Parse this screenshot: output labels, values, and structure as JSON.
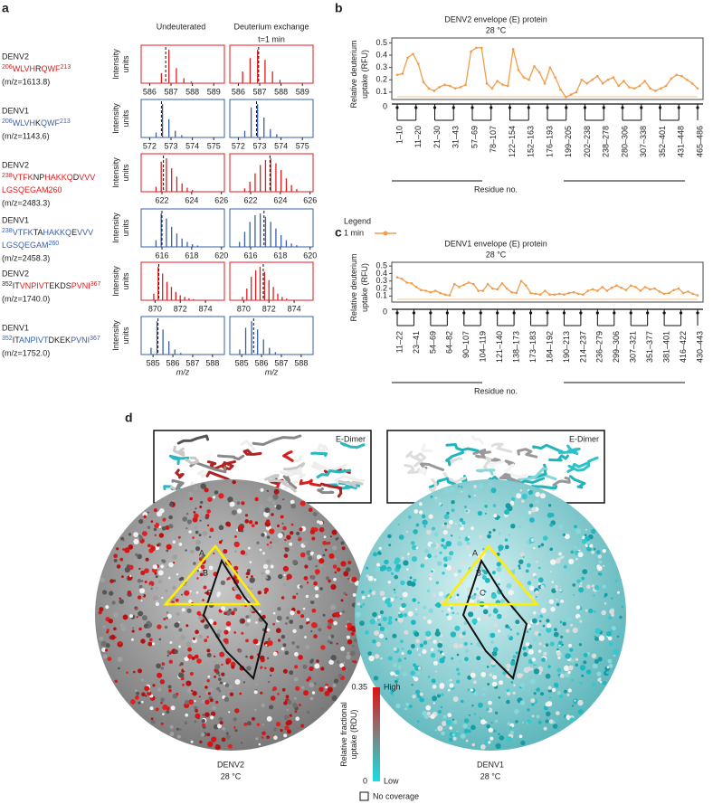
{
  "panel_a": {
    "label": "a",
    "headers": [
      "Undeuterated",
      "Deuterium exchange"
    ],
    "time": "t=1 min",
    "ylabel": [
      "Intensity",
      "units"
    ],
    "xlabel": "m/z",
    "rows": [
      {
        "name": "DENV2",
        "color": "#e41a1c",
        "sequence": [
          [
            {
              "text": "206",
              "sup": true,
              "color": "#e41a1c"
            },
            {
              "text": "WLVH",
              "color": "#e41a1c"
            },
            {
              "text": "R",
              "color": "#222222"
            },
            {
              "text": "QWF",
              "color": "#e41a1c"
            },
            {
              "text": "213",
              "sup": true,
              "color": "#e41a1c"
            }
          ]
        ],
        "mz": "(m/z=1613.8)",
        "undeuterated": {
          "xlim": [
            585.6,
            589.5
          ],
          "xticks": [
            586,
            587,
            588,
            589
          ],
          "mz": [
            586.55,
            586.9,
            587.25,
            587.6,
            587.95
          ],
          "intensity": [
            0.3,
            1.0,
            0.45,
            0.15,
            0.05
          ],
          "centroid": 586.75
        },
        "exchange": {
          "xlim": [
            585.6,
            589.5
          ],
          "xticks": [
            586,
            587,
            588,
            589
          ],
          "mz": [
            586.2,
            586.55,
            586.9,
            587.25,
            587.6,
            587.95
          ],
          "intensity": [
            0.35,
            0.75,
            1.0,
            0.7,
            0.35,
            0.1
          ],
          "centroid": 586.95
        }
      },
      {
        "name": "DENV1",
        "color": "#3a5fa8",
        "sequence": [
          [
            {
              "text": "206",
              "sup": true,
              "color": "#3a5fa8"
            },
            {
              "text": "WLVH",
              "color": "#3a5fa8"
            },
            {
              "text": "K",
              "color": "#222222"
            },
            {
              "text": "QWF",
              "color": "#3a5fa8"
            },
            {
              "text": "213",
              "sup": true,
              "color": "#3a5fa8"
            }
          ]
        ],
        "mz": "(m/z=1143.6)",
        "undeuterated": {
          "xlim": [
            571.6,
            575.5
          ],
          "xticks": [
            572,
            573,
            574,
            575
          ],
          "mz": [
            572.3,
            572.6,
            572.9,
            573.2,
            573.5
          ],
          "intensity": [
            0.15,
            1.0,
            0.55,
            0.2,
            0.07
          ],
          "centroid": 572.55
        },
        "exchange": {
          "xlim": [
            571.6,
            575.5
          ],
          "xticks": [
            572,
            573,
            574,
            575
          ],
          "mz": [
            572.3,
            572.6,
            572.9,
            573.2,
            573.5,
            573.8
          ],
          "intensity": [
            0.2,
            0.9,
            1.0,
            0.6,
            0.25,
            0.1
          ],
          "centroid": 572.85
        }
      },
      {
        "name": "DENV2",
        "color": "#e41a1c",
        "sequence": [
          [
            {
              "text": "238",
              "sup": true,
              "color": "#e41a1c"
            },
            {
              "text": "VTFK",
              "color": "#e41a1c"
            },
            {
              "text": "NP",
              "color": "#222222"
            },
            {
              "text": "HAKKQ",
              "color": "#e41a1c"
            },
            {
              "text": "D",
              "color": "#222222"
            },
            {
              "text": "VVV",
              "color": "#e41a1c"
            }
          ],
          [
            {
              "text": "LGSQEGAM260",
              "color": "#e41a1c"
            }
          ]
        ],
        "mz": "(m/z=2483.3)",
        "undeuterated": {
          "xlim": [
            620.6,
            626.2
          ],
          "xticks": [
            622,
            624,
            626
          ],
          "mz": [
            621.6,
            621.95,
            622.3,
            622.65,
            623.0,
            623.35,
            623.7,
            624.05
          ],
          "intensity": [
            0.15,
            0.9,
            1.0,
            0.7,
            0.45,
            0.25,
            0.12,
            0.05
          ],
          "centroid": 622.1
        },
        "exchange": {
          "xlim": [
            620.6,
            626.2
          ],
          "xticks": [
            622,
            624,
            626
          ],
          "mz": [
            621.6,
            621.95,
            622.3,
            622.65,
            623.0,
            623.35,
            623.7,
            624.05,
            624.4,
            624.75,
            625.1
          ],
          "intensity": [
            0.1,
            0.3,
            0.55,
            0.8,
            0.95,
            1.0,
            0.85,
            0.65,
            0.4,
            0.2,
            0.08
          ],
          "centroid": 623.3
        }
      },
      {
        "name": "DENV1",
        "color": "#3a5fa8",
        "sequence": [
          [
            {
              "text": "238",
              "sup": true,
              "color": "#3a5fa8"
            },
            {
              "text": "VTFK",
              "color": "#3a5fa8"
            },
            {
              "text": "TA",
              "color": "#222222"
            },
            {
              "text": "HAKKQ",
              "color": "#3a5fa8"
            },
            {
              "text": "E",
              "color": "#222222"
            },
            {
              "text": "VVV",
              "color": "#3a5fa8"
            }
          ],
          [
            {
              "text": "LGSQEGAM",
              "color": "#3a5fa8"
            },
            {
              "text": "260",
              "sup": true,
              "color": "#3a5fa8"
            }
          ]
        ],
        "mz": "(m/z=2458.3)",
        "undeuterated": {
          "xlim": [
            614.6,
            620.2
          ],
          "xticks": [
            616,
            618,
            620
          ],
          "mz": [
            615.6,
            615.95,
            616.3,
            616.65,
            617.0,
            617.35,
            617.7,
            618.05,
            618.4
          ],
          "intensity": [
            0.2,
            1.0,
            0.85,
            0.6,
            0.4,
            0.25,
            0.15,
            0.08,
            0.04
          ],
          "centroid": 616.0
        },
        "exchange": {
          "xlim": [
            614.6,
            620.2
          ],
          "xticks": [
            616,
            618,
            620
          ],
          "mz": [
            615.25,
            615.6,
            615.95,
            616.3,
            616.65,
            617.0,
            617.35,
            617.7,
            618.05,
            618.4,
            618.75,
            619.1
          ],
          "intensity": [
            0.15,
            0.45,
            0.75,
            0.95,
            1.0,
            0.9,
            0.75,
            0.55,
            0.35,
            0.2,
            0.1,
            0.05
          ],
          "centroid": 616.9
        }
      },
      {
        "name": "DENV2",
        "color": "#e41a1c",
        "sequence": [
          [
            {
              "text": "352",
              "sup": true,
              "color": "#222222"
            },
            {
              "text": "IT",
              "color": "#222222"
            },
            {
              "text": "VNPIVT",
              "color": "#e41a1c"
            },
            {
              "text": "EKDS",
              "color": "#222222"
            },
            {
              "text": "PVNI",
              "color": "#e41a1c"
            },
            {
              "text": "367",
              "sup": true,
              "color": "#e41a1c"
            }
          ]
        ],
        "mz": "(m/z=1740.0)",
        "undeuterated": {
          "xlim": [
            868.9,
            875.5
          ],
          "xticks": [
            870,
            872,
            874
          ],
          "mz": [
            869.9,
            870.25,
            870.6,
            870.95,
            871.3,
            871.65,
            872.0,
            872.35,
            872.7,
            873.05
          ],
          "intensity": [
            0.2,
            1.0,
            0.8,
            0.55,
            0.4,
            0.25,
            0.15,
            0.1,
            0.06,
            0.03
          ],
          "centroid": 870.3
        },
        "exchange": {
          "xlim": [
            868.9,
            875.5
          ],
          "xticks": [
            870,
            872,
            874
          ],
          "mz": [
            869.9,
            870.25,
            870.6,
            870.95,
            871.3,
            871.65,
            872.0,
            872.35,
            872.7,
            873.05,
            873.4
          ],
          "intensity": [
            0.1,
            0.35,
            0.7,
            0.9,
            1.0,
            0.85,
            0.6,
            0.4,
            0.2,
            0.1,
            0.05
          ],
          "centroid": 871.55
        }
      },
      {
        "name": "DENV1",
        "color": "#3a5fa8",
        "sequence": [
          [
            {
              "text": "352",
              "sup": true,
              "color": "#3a5fa8"
            },
            {
              "text": "IT",
              "color": "#222222"
            },
            {
              "text": "ANPIVT",
              "color": "#3a5fa8"
            },
            {
              "text": "DKEK",
              "color": "#222222"
            },
            {
              "text": "PVNI",
              "color": "#3a5fa8"
            },
            {
              "text": "367",
              "sup": true,
              "color": "#3a5fa8"
            }
          ]
        ],
        "mz": "(m/z=1752.0)",
        "undeuterated": {
          "xlim": [
            584.4,
            588.6
          ],
          "xticks": [
            585,
            586,
            587,
            588
          ],
          "mz": [
            584.9,
            585.2,
            585.5,
            585.8,
            586.1,
            586.4
          ],
          "intensity": [
            0.2,
            1.0,
            0.75,
            0.4,
            0.15,
            0.05
          ],
          "centroid": 585.25
        },
        "exchange": {
          "xlim": [
            584.4,
            588.6
          ],
          "xticks": [
            585,
            586,
            587,
            588
          ],
          "mz": [
            584.9,
            585.2,
            585.5,
            585.8,
            586.1,
            586.4,
            586.7
          ],
          "intensity": [
            0.15,
            0.8,
            1.0,
            0.75,
            0.45,
            0.2,
            0.07
          ],
          "centroid": 585.6
        }
      }
    ]
  },
  "panel_b": {
    "label": "b",
    "type": "line",
    "title": "DENV2 envelope (E) protein",
    "subtitle": "28 °C",
    "ylabel": [
      "Relative deuterium",
      "uptake (RFU)"
    ],
    "ylim": [
      0.04,
      0.54
    ],
    "yticks": [
      0.1,
      0.2,
      0.3,
      0.4,
      0.5
    ],
    "zero_label": 0,
    "xlabel": "Residue no.",
    "legend_title": "Legend",
    "series": [
      {
        "name": "1 min",
        "color": "#f29d4b",
        "values": [
          0.24,
          0.25,
          0.38,
          0.41,
          0.33,
          0.18,
          0.13,
          0.11,
          0.14,
          0.16,
          0.15,
          0.13,
          0.14,
          0.16,
          0.43,
          0.46,
          0.46,
          0.17,
          0.13,
          0.19,
          0.16,
          0.15,
          0.45,
          0.28,
          0.22,
          0.2,
          0.31,
          0.26,
          0.17,
          0.3,
          0.22,
          0.12,
          0.06,
          0.08,
          0.1,
          0.2,
          0.17,
          0.2,
          0.23,
          0.17,
          0.2,
          0.22,
          0.15,
          0.19,
          0.14,
          0.13,
          0.15,
          0.19,
          0.13,
          0.11,
          0.13,
          0.15,
          0.21,
          0.24,
          0.23,
          0.2,
          0.17,
          0.13
        ]
      }
    ],
    "peptides": [
      "1–10",
      "11–20",
      "21–30",
      "31–43",
      "57–69",
      "78–107",
      "122–154",
      "152–163",
      "176–193",
      "199–205",
      "202–238",
      "238–278",
      "280–306",
      "307–338",
      "352–401",
      "431–448",
      "465–486"
    ]
  },
  "panel_c": {
    "label": "c",
    "type": "line",
    "title": "DENV1 envelope (E) protein",
    "subtitle": "28 °C",
    "ylabel": [
      "Relative deuterium",
      "uptake (RFU)"
    ],
    "ylim": [
      0.02,
      0.55
    ],
    "yticks": [
      0.1,
      0.2,
      0.3,
      0.4,
      0.5
    ],
    "zero_label": 0,
    "xlabel": "Residue no.",
    "series": [
      {
        "name": "1 min",
        "color": "#f29d4b",
        "values": [
          0.35,
          0.33,
          0.28,
          0.27,
          0.22,
          0.18,
          0.17,
          0.15,
          0.17,
          0.14,
          0.12,
          0.11,
          0.26,
          0.22,
          0.25,
          0.28,
          0.26,
          0.17,
          0.17,
          0.26,
          0.2,
          0.19,
          0.27,
          0.2,
          0.15,
          0.14,
          0.3,
          0.24,
          0.14,
          0.13,
          0.12,
          0.17,
          0.12,
          0.12,
          0.13,
          0.12,
          0.14,
          0.15,
          0.13,
          0.12,
          0.17,
          0.19,
          0.17,
          0.22,
          0.17,
          0.21,
          0.24,
          0.21,
          0.18,
          0.24,
          0.22,
          0.17,
          0.22,
          0.19,
          0.2,
          0.16,
          0.13,
          0.14,
          0.18,
          0.2,
          0.14,
          0.16,
          0.13,
          0.11
        ]
      }
    ],
    "peptides": [
      "11–22",
      "23–41",
      "54–69",
      "64–82",
      "90–107",
      "104–119",
      "121–140",
      "138–173",
      "173–183",
      "184–192",
      "190–213",
      "214–237",
      "236–279",
      "299–306",
      "307–321",
      "351–377",
      "381–401",
      "416–422",
      "430–443"
    ]
  },
  "panel_d": {
    "label": "d",
    "dimer_label": "E-Dimer",
    "structures": [
      {
        "name": "DENV2",
        "temperature": "28 °C"
      },
      {
        "name": "DENV1",
        "temperature": "28 °C"
      }
    ],
    "sphere_labels": [
      "A",
      "B",
      "C"
    ],
    "colorbar": {
      "range": [
        0,
        0.35
      ],
      "high": "High",
      "low": "Low",
      "label": [
        "Relative fractional",
        "uptake (RDU)"
      ],
      "no_coverage": "No coverage"
    }
  }
}
